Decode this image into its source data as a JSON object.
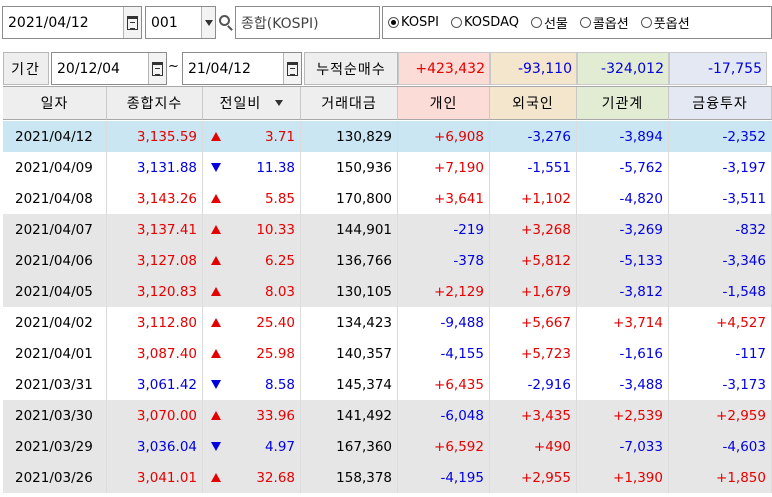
{
  "toolbar": {
    "date": "2021/04/12",
    "code": "001",
    "index_name": "종합(KOSPI)",
    "markets": [
      {
        "label": "KOSPI",
        "checked": true
      },
      {
        "label": "KOSDAQ",
        "checked": false
      },
      {
        "label": "선물",
        "checked": false
      },
      {
        "label": "콜옵션",
        "checked": false
      },
      {
        "label": "풋옵션",
        "checked": false
      }
    ]
  },
  "period": {
    "label": "기간",
    "from": "20/12/04",
    "tilde": "~",
    "to": "21/04/12",
    "cum_label": "누적순매수",
    "cum_values": {
      "individual": "+423,432",
      "foreign": "-93,110",
      "institution": "-324,012",
      "financial": "-17,755"
    }
  },
  "colors": {
    "up": "#e50000",
    "down": "#0000e0",
    "selected_row": "#c9e6f2",
    "gray_row": "#e6e6e6",
    "individual_header": "#fbdcd6",
    "foreign_header": "#f3e6cd",
    "institution_header": "#e2ecd3",
    "financial_header": "#e3e8f3"
  },
  "table": {
    "headers": [
      "일자",
      "종합지수",
      "전일비",
      "거래대금",
      "개인",
      "외국인",
      "기관계",
      "금융투자"
    ],
    "rows": [
      {
        "date": "2021/04/12",
        "index": "3,135.59",
        "dir": "up",
        "change": "3.71",
        "volume": "130,829",
        "individual": "+6,908",
        "foreign": "-3,276",
        "institution": "-3,894",
        "financial": "-2,352",
        "style": "sel"
      },
      {
        "date": "2021/04/09",
        "index": "3,131.88",
        "dir": "down",
        "change": "11.38",
        "volume": "150,936",
        "individual": "+7,190",
        "foreign": "-1,551",
        "institution": "-5,762",
        "financial": "-3,197",
        "style": ""
      },
      {
        "date": "2021/04/08",
        "index": "3,143.26",
        "dir": "up",
        "change": "5.85",
        "volume": "170,800",
        "individual": "+3,641",
        "foreign": "+1,102",
        "institution": "-4,820",
        "financial": "-3,511",
        "style": ""
      },
      {
        "date": "2021/04/07",
        "index": "3,137.41",
        "dir": "up",
        "change": "10.33",
        "volume": "144,901",
        "individual": "-219",
        "foreign": "+3,268",
        "institution": "-3,269",
        "financial": "-832",
        "style": "gray"
      },
      {
        "date": "2021/04/06",
        "index": "3,127.08",
        "dir": "up",
        "change": "6.25",
        "volume": "136,766",
        "individual": "-378",
        "foreign": "+5,812",
        "institution": "-5,133",
        "financial": "-3,346",
        "style": "gray"
      },
      {
        "date": "2021/04/05",
        "index": "3,120.83",
        "dir": "up",
        "change": "8.03",
        "volume": "130,105",
        "individual": "+2,129",
        "foreign": "+1,679",
        "institution": "-3,812",
        "financial": "-1,548",
        "style": "gray"
      },
      {
        "date": "2021/04/02",
        "index": "3,112.80",
        "dir": "up",
        "change": "25.40",
        "volume": "134,423",
        "individual": "-9,488",
        "foreign": "+5,667",
        "institution": "+3,714",
        "financial": "+4,527",
        "style": ""
      },
      {
        "date": "2021/04/01",
        "index": "3,087.40",
        "dir": "up",
        "change": "25.98",
        "volume": "140,357",
        "individual": "-4,155",
        "foreign": "+5,723",
        "institution": "-1,616",
        "financial": "-117",
        "style": ""
      },
      {
        "date": "2021/03/31",
        "index": "3,061.42",
        "dir": "down",
        "change": "8.58",
        "volume": "145,374",
        "individual": "+6,435",
        "foreign": "-2,916",
        "institution": "-3,488",
        "financial": "-3,173",
        "style": ""
      },
      {
        "date": "2021/03/30",
        "index": "3,070.00",
        "dir": "up",
        "change": "33.96",
        "volume": "141,492",
        "individual": "-6,048",
        "foreign": "+3,435",
        "institution": "+2,539",
        "financial": "+2,959",
        "style": "gray"
      },
      {
        "date": "2021/03/29",
        "index": "3,036.04",
        "dir": "down",
        "change": "4.97",
        "volume": "167,360",
        "individual": "+6,592",
        "foreign": "+490",
        "institution": "-7,033",
        "financial": "-4,603",
        "style": "gray"
      },
      {
        "date": "2021/03/26",
        "index": "3,041.01",
        "dir": "up",
        "change": "32.68",
        "volume": "158,378",
        "individual": "-4,195",
        "foreign": "+2,955",
        "institution": "+1,390",
        "financial": "+1,850",
        "style": "gray"
      }
    ]
  }
}
